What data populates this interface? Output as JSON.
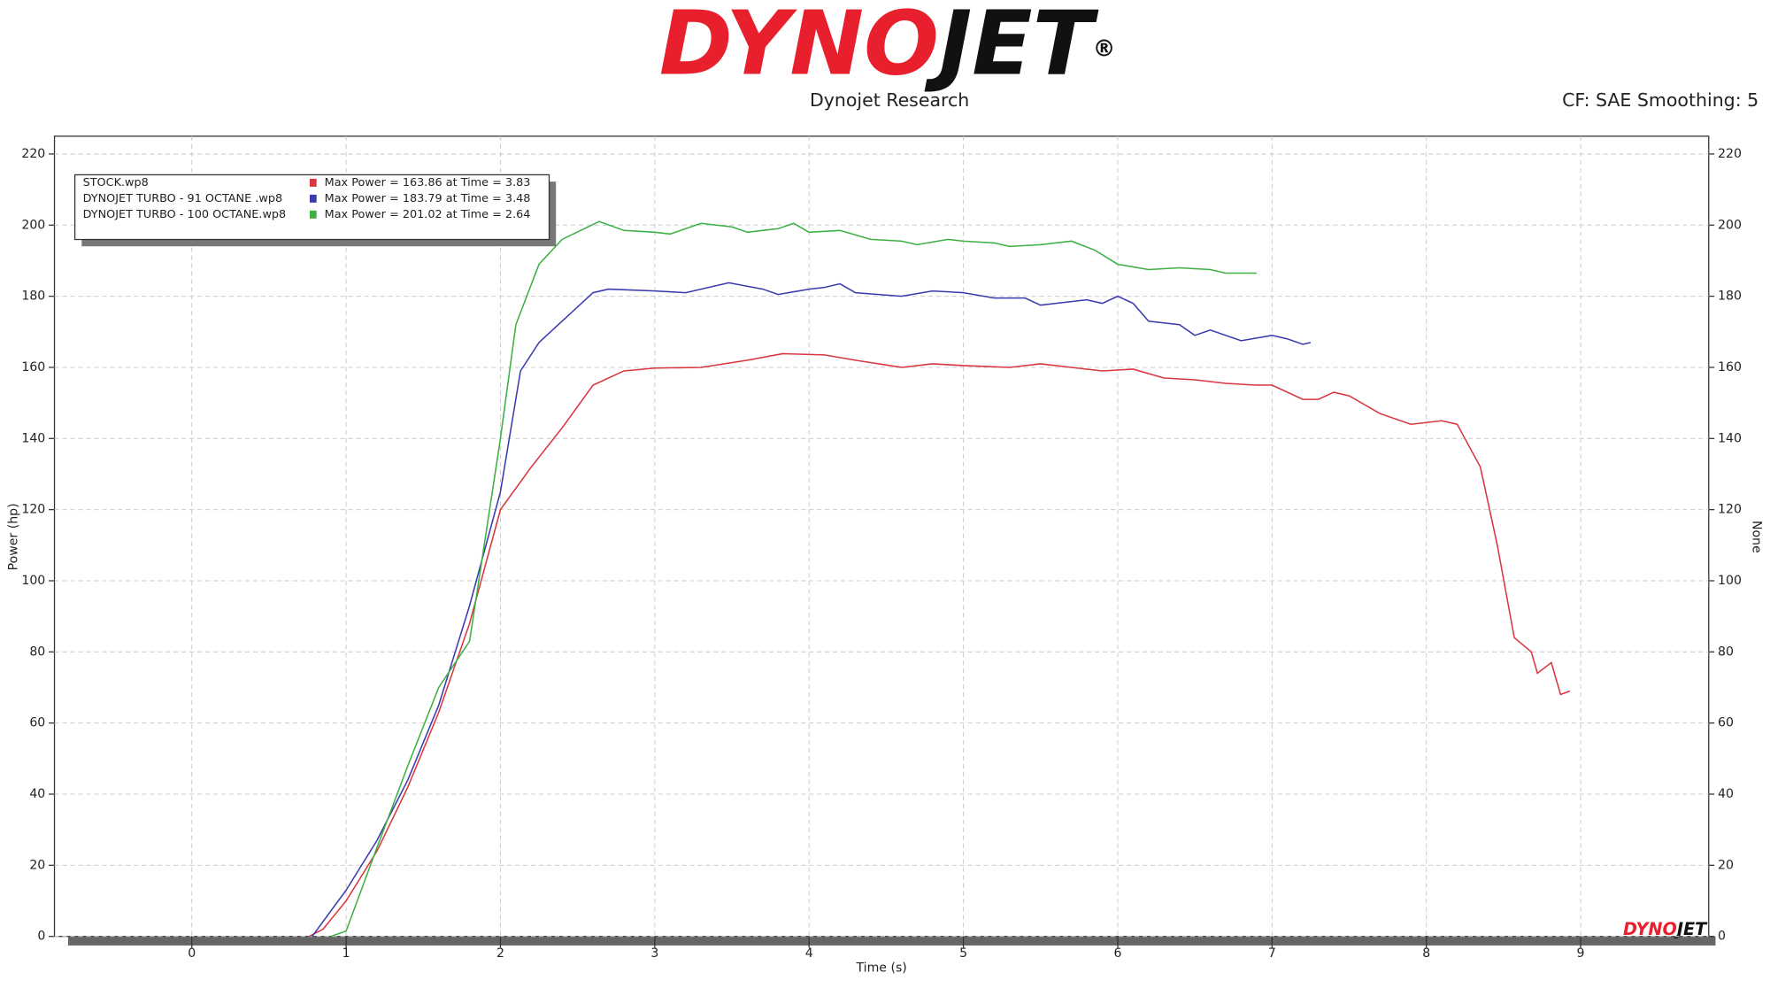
{
  "chart_data": {
    "type": "line",
    "logo": [
      "DYNO",
      "JET",
      "®"
    ],
    "subtitle": "Dynojet Research",
    "header_right": "CF: SAE Smoothing: 5",
    "x_label": "Time (s)",
    "y_label": "Power (hp)",
    "y2_label": "None",
    "xlim": [
      -0.89,
      9.83
    ],
    "xticks": [
      0,
      1,
      2,
      3,
      4,
      5,
      6,
      7,
      8,
      9
    ],
    "ylim": [
      0,
      225
    ],
    "yticks": [
      0,
      20,
      40,
      60,
      80,
      100,
      120,
      140,
      160,
      180,
      200,
      220
    ],
    "y2lim": [
      0,
      225
    ],
    "y2ticks": [
      0,
      20,
      40,
      60,
      80,
      100,
      120,
      140,
      160,
      180,
      200,
      220
    ],
    "grid": true,
    "legend": "upper left",
    "series": [
      {
        "name": "STOCK.wp8",
        "color": "#d9363e",
        "annotation": "Max Power = 163.86 at Time = 3.83",
        "x": [
          0.76,
          0.85,
          1.0,
          1.2,
          1.4,
          1.6,
          1.8,
          2.0,
          2.2,
          2.4,
          2.6,
          2.8,
          3.0,
          3.3,
          3.6,
          3.83,
          4.1,
          4.3,
          4.6,
          4.8,
          5.0,
          5.3,
          5.5,
          5.7,
          5.9,
          6.1,
          6.3,
          6.5,
          6.7,
          6.9,
          7.0,
          7.2,
          7.3,
          7.4,
          7.5,
          7.7,
          7.9,
          8.1,
          8.2,
          8.35,
          8.46,
          8.57,
          8.68,
          8.72,
          8.81,
          8.87,
          8.93
        ],
        "values": [
          0,
          2,
          10,
          24,
          42,
          63,
          88,
          120,
          132,
          143,
          155,
          159,
          159.8,
          160,
          162,
          163.86,
          163.5,
          162,
          160,
          161,
          160.5,
          160,
          161,
          160,
          159,
          159.5,
          157,
          156.5,
          155.5,
          155,
          155,
          151,
          151,
          153,
          152,
          147,
          144,
          145,
          144,
          132,
          110,
          84,
          80,
          74,
          77,
          68,
          69
        ]
      },
      {
        "name": "DYNOJET TURBO - 91 OCTANE .wp8",
        "color": "#3a3ab0",
        "annotation": "Max Power = 183.79 at Time = 3.48",
        "x": [
          0.78,
          1.0,
          1.2,
          1.4,
          1.6,
          1.8,
          2.0,
          2.13,
          2.25,
          2.4,
          2.6,
          2.7,
          3.0,
          3.2,
          3.48,
          3.7,
          3.8,
          4.0,
          4.1,
          4.2,
          4.3,
          4.6,
          4.8,
          5.0,
          5.2,
          5.4,
          5.5,
          5.6,
          5.8,
          5.9,
          6.0,
          6.1,
          6.2,
          6.4,
          6.5,
          6.6,
          6.8,
          7.0,
          7.1,
          7.2,
          7.25
        ],
        "values": [
          0,
          13,
          27,
          44,
          65,
          93,
          125,
          159,
          167,
          173,
          181,
          182,
          181.5,
          181,
          183.79,
          182,
          180.5,
          182,
          182.5,
          183.5,
          181,
          180,
          181.5,
          181,
          179.5,
          179.5,
          177.5,
          178,
          179,
          178,
          180,
          178,
          173,
          172,
          169,
          170.5,
          167.5,
          169,
          168,
          166.5,
          167
        ]
      },
      {
        "name": "DYNOJET TURBO - 100 OCTANE.wp8",
        "color": "#3cb043",
        "annotation": "Max Power = 201.02 at Time = 2.64",
        "x": [
          0.9,
          1.0,
          1.2,
          1.4,
          1.6,
          1.8,
          2.0,
          2.1,
          2.25,
          2.4,
          2.64,
          2.8,
          3.0,
          3.1,
          3.3,
          3.5,
          3.6,
          3.8,
          3.9,
          4.0,
          4.2,
          4.4,
          4.6,
          4.7,
          4.9,
          5.0,
          5.2,
          5.3,
          5.5,
          5.7,
          5.85,
          6.0,
          6.2,
          6.4,
          6.6,
          6.7,
          6.9
        ],
        "values": [
          0,
          1.5,
          25,
          48,
          70,
          83,
          140,
          172,
          189,
          196,
          201.02,
          198.5,
          198,
          197.5,
          200.5,
          199.5,
          198,
          199,
          200.5,
          198,
          198.5,
          196,
          195.5,
          194.5,
          196,
          195.5,
          195,
          194,
          194.5,
          195.5,
          193,
          189,
          187.5,
          188,
          187.5,
          186.5,
          186.5
        ]
      }
    ]
  }
}
